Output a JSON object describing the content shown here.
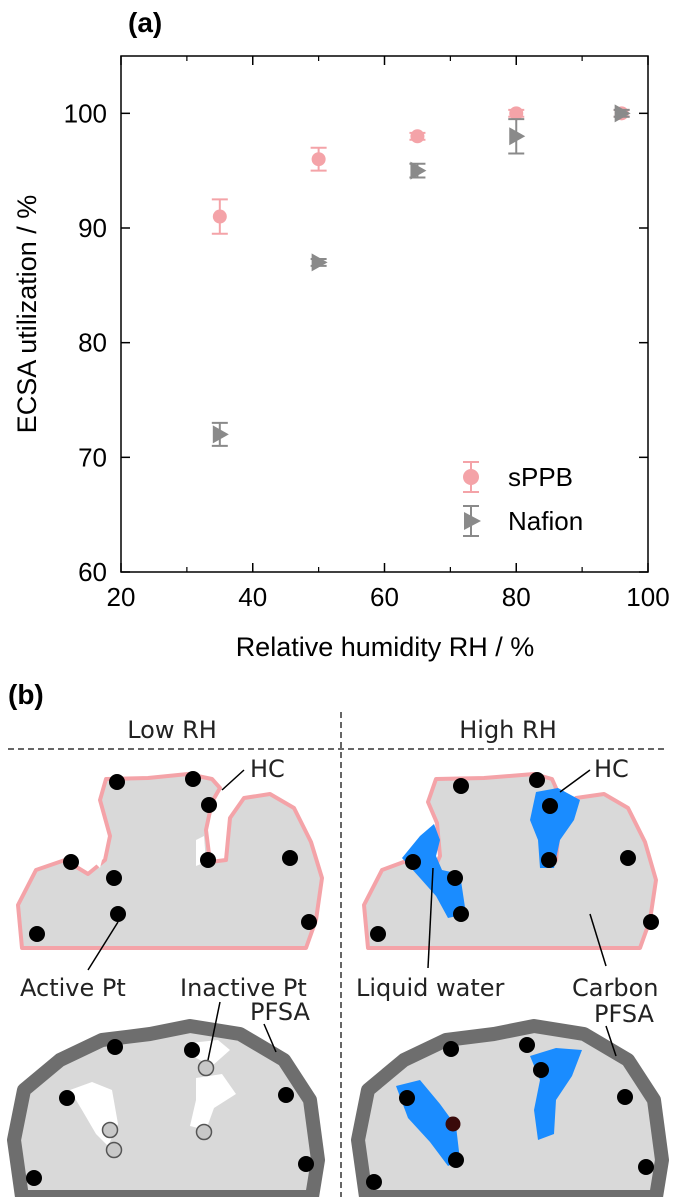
{
  "panel_a": {
    "label": "(a)"
  },
  "panel_b": {
    "label": "(b)",
    "low_rh": "Low RH",
    "high_rh": "High RH",
    "labels": {
      "hc_left": "HC",
      "hc_right": "HC",
      "active_pt": "Active Pt",
      "inactive_pt": "Inactive Pt",
      "liquid_water": "Liquid water",
      "carbon": "Carbon",
      "pfsa_left": "PFSA",
      "pfsa_right": "PFSA"
    }
  },
  "colors": {
    "spPB": "#f4a3a8",
    "nafion": "#8a8a8a",
    "carbon": "#d9d9d9",
    "hc_layer": "#f4a3a8",
    "pfsa_layer": "#6e6e6e",
    "water": "#1a8cff",
    "pt": "#000000",
    "inactive_pt": "#c8c8c8"
  },
  "chart_data": {
    "type": "scatter",
    "xlabel": "Relative humidity RH / %",
    "ylabel": "ECSA utilization / %",
    "xlim": [
      20,
      100
    ],
    "ylim": [
      60,
      105
    ],
    "xticks": [
      20,
      40,
      60,
      80,
      100
    ],
    "yticks": [
      60,
      70,
      80,
      90,
      100
    ],
    "grid": false,
    "legend_position": "bottom-right",
    "series": [
      {
        "name": "sPPB",
        "marker": "circle",
        "x": [
          35,
          50,
          65,
          80,
          96
        ],
        "y": [
          91,
          96,
          98,
          100,
          100
        ],
        "err": [
          1.5,
          1.0,
          0.3,
          0.3,
          0.3
        ]
      },
      {
        "name": "Nafion",
        "marker": "triangle-right",
        "x": [
          35,
          50,
          65,
          80,
          96
        ],
        "y": [
          72,
          87,
          95,
          98,
          100
        ],
        "err": [
          1.0,
          0.3,
          0.6,
          1.5,
          0.3
        ]
      }
    ]
  }
}
